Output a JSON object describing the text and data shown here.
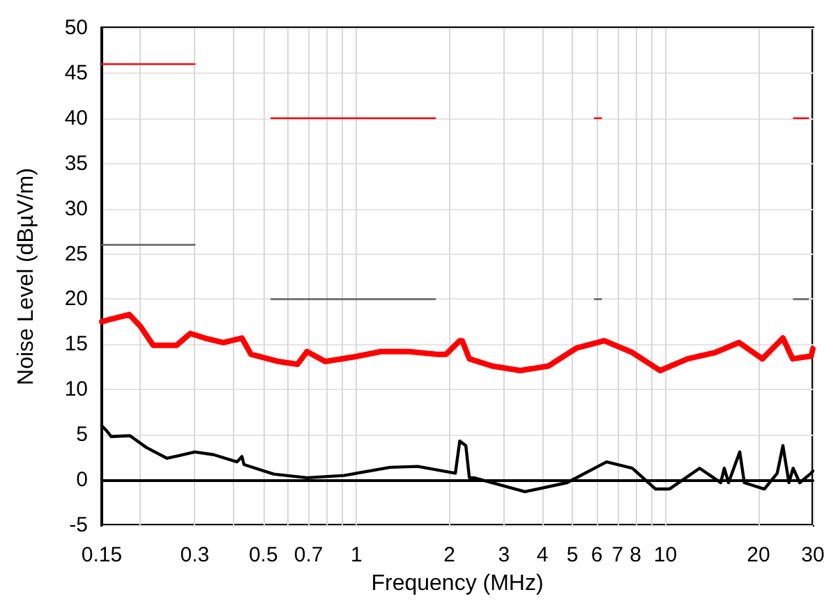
{
  "chart_data": {
    "type": "line",
    "xlabel": "Frequency (MHz)",
    "ylabel": "Noise Level (dBµV/m)",
    "log": "x",
    "grid": true,
    "marker": "none",
    "line_style": "solid",
    "xlim": [
      0.15,
      30
    ],
    "ylim": [
      -5,
      50
    ],
    "xticks": [
      0.15,
      {
        "value": 0.2,
        "label": null
      },
      0.3,
      {
        "value": 0.4,
        "label": null
      },
      0.5,
      {
        "value": 0.6,
        "label": null
      },
      0.7,
      {
        "value": 0.8,
        "label": null
      },
      {
        "value": 0.9,
        "label": null
      },
      1,
      2,
      3,
      4,
      5,
      6,
      7,
      8,
      {
        "value": 9,
        "label": null
      },
      10,
      20,
      30
    ],
    "yticks": [
      -5,
      0,
      5,
      10,
      15,
      20,
      25,
      30,
      35,
      40,
      45,
      50
    ],
    "series": [
      {
        "color": "#ff0000",
        "x": [
          0.15,
          0.161,
          0.184,
          0.2,
          0.22,
          0.262,
          0.29,
          0.323,
          0.371,
          0.426,
          0.456,
          0.561,
          0.645,
          0.692,
          0.793,
          0.978,
          1.2,
          1.479,
          1.82,
          1.95,
          2.16,
          2.2,
          2.32,
          2.75,
          3.39,
          4.18,
          5.16,
          6.34,
          7.81,
          9.61,
          11.8,
          14.5,
          17.3,
          20.6,
          24.0,
          25.8,
          29.6,
          30
        ],
        "values": [
          17.5,
          17.8,
          18.3,
          17.0,
          14.9,
          14.9,
          16.2,
          15.7,
          15.2,
          15.7,
          13.9,
          13.1,
          12.8,
          14.2,
          13.1,
          13.6,
          14.2,
          14.2,
          13.9,
          13.9,
          15.4,
          15.4,
          13.4,
          12.6,
          12.1,
          12.6,
          14.6,
          15.4,
          14.1,
          12.1,
          13.4,
          14.1,
          15.2,
          13.4,
          15.7,
          13.4,
          13.7,
          14.5
        ]
      },
      {
        "color": "#000000",
        "x": [
          0.15,
          0.155,
          0.161,
          0.185,
          0.209,
          0.244,
          0.3,
          0.345,
          0.411,
          0.426,
          0.433,
          0.54,
          0.692,
          0.912,
          1.288,
          1.58,
          2.09,
          2.16,
          2.26,
          2.32,
          2.4,
          3.51,
          4.8,
          6.45,
          7.81,
          9.29,
          10.3,
          12.9,
          15.1,
          15.5,
          16.0,
          17.4,
          18.0,
          20.9,
          23.0,
          24.0,
          25.1,
          25.9,
          27.2,
          29.6,
          30
        ],
        "values": [
          6.0,
          5.5,
          4.8,
          4.9,
          3.6,
          2.4,
          3.1,
          2.8,
          2.0,
          2.6,
          1.7,
          0.65,
          0.25,
          0.5,
          1.4,
          1.5,
          0.75,
          4.3,
          3.8,
          0.25,
          0.25,
          -1.3,
          -0.3,
          2.0,
          1.3,
          -1.0,
          -1.0,
          1.3,
          -0.3,
          1.3,
          -0.3,
          3.1,
          -0.3,
          -1.0,
          0.75,
          3.8,
          -0.3,
          1.3,
          -0.3,
          0.75,
          1.0
        ]
      },
      {
        "color": "#ff0000",
        "x": [
          0.15,
          0.3,
          0.4,
          0.53,
          1.8,
          3,
          5.9,
          6.2,
          10,
          26,
          29
        ],
        "values": [
          46,
          46,
          null,
          40,
          40,
          null,
          40,
          40,
          null,
          40,
          40
        ]
      },
      {
        "color": "#606060",
        "x": [
          0.15,
          0.3,
          0.4,
          0.53,
          1.8,
          3,
          5.9,
          6.2,
          10,
          26,
          29
        ],
        "values": [
          26,
          26,
          null,
          20,
          20,
          null,
          20,
          20,
          null,
          20,
          20
        ]
      }
    ]
  }
}
